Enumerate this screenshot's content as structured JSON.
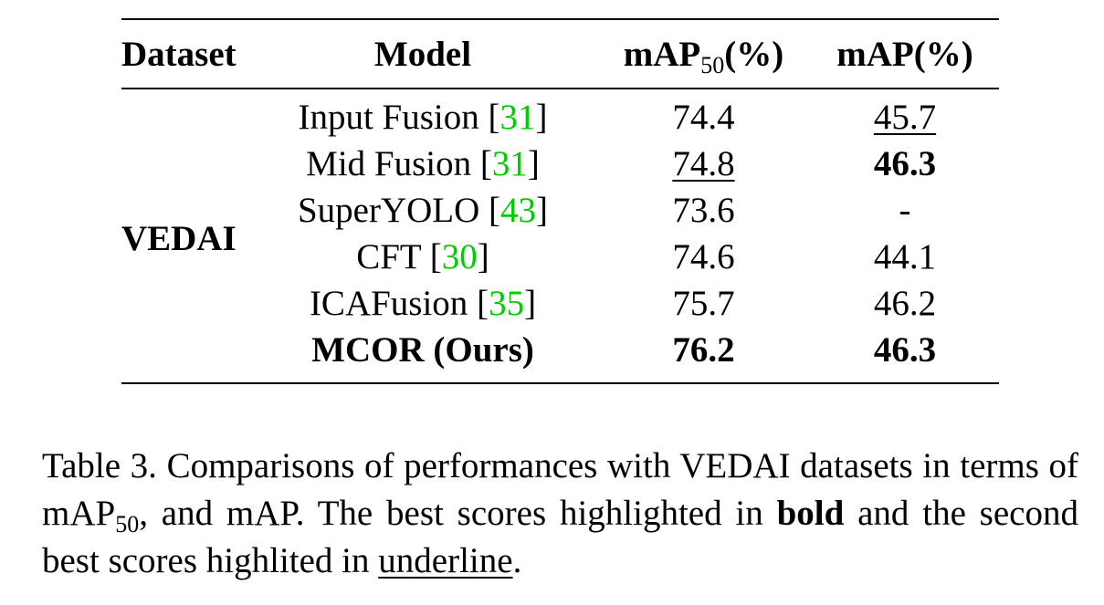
{
  "table": {
    "headers": {
      "dataset": "Dataset",
      "model": "Model",
      "map50_main": "mAP",
      "map50_sub": "50",
      "map50_unit": "(%)",
      "map": "mAP(%)"
    },
    "dataset_name": "VEDAI",
    "rows": [
      {
        "model": "Input Fusion",
        "ref": "31",
        "map50": "74.4",
        "map": "45.7"
      },
      {
        "model": "Mid Fusion",
        "ref": "31",
        "map50": "74.8",
        "map": "46.3"
      },
      {
        "model": "SuperYOLO",
        "ref": "43",
        "map50": "73.6",
        "map": "-"
      },
      {
        "model": "CFT",
        "ref": "30",
        "map50": "74.6",
        "map": "44.1"
      },
      {
        "model": "ICAFusion",
        "ref": "35",
        "map50": "75.7",
        "map": "46.2"
      },
      {
        "model": "MCOR (Ours)",
        "ref": "",
        "map50": "76.2",
        "map": "46.3"
      }
    ]
  },
  "caption": {
    "part1": "Table 3.  Comparisons of performances with VEDAI datasets in terms of mAP",
    "sub": "50",
    "part2": ", and mAP. The best scores highlighted in ",
    "bold_word": "bold",
    "part3": " and the second best scores highlited in ",
    "underline_word": "underline",
    "part4": "."
  }
}
